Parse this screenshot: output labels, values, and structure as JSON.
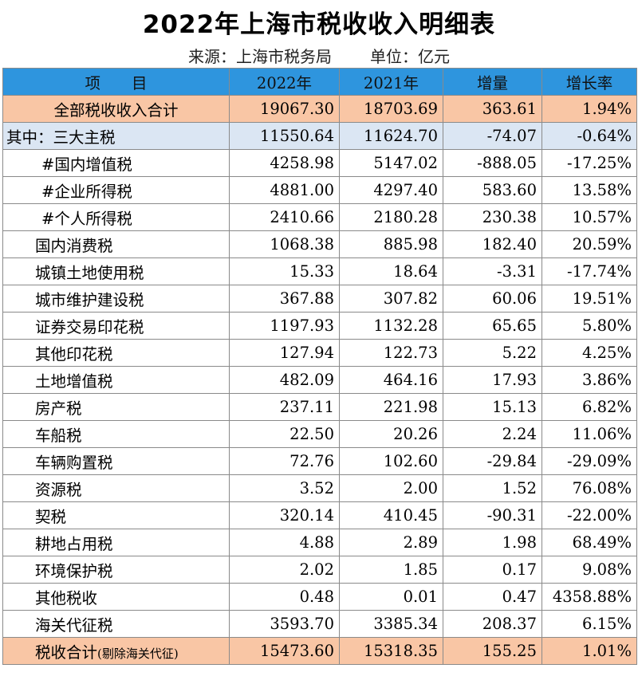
{
  "title": "2022年上海市税收收入明细表",
  "source": "来源：上海市税务局",
  "unit": "单位：亿元",
  "headers": [
    "项　　目",
    "2022年",
    "2021年",
    "增量",
    "增长率"
  ],
  "rows": [
    {
      "name": "全部税收收入合计",
      "y2022": "19067.30",
      "y2021": "18703.69",
      "delta": "363.61",
      "rate": "1.94%"
    },
    {
      "name": "其中：三大主税",
      "y2022": "11550.64",
      "y2021": "11624.70",
      "delta": "-74.07",
      "rate": "-0.64%"
    },
    {
      "name": "#国内增值税",
      "y2022": "4258.98",
      "y2021": "5147.02",
      "delta": "-888.05",
      "rate": "-17.25%"
    },
    {
      "name": "#企业所得税",
      "y2022": "4881.00",
      "y2021": "4297.40",
      "delta": "583.60",
      "rate": "13.58%"
    },
    {
      "name": "#个人所得税",
      "y2022": "2410.66",
      "y2021": "2180.28",
      "delta": "230.38",
      "rate": "10.57%"
    },
    {
      "name": "国内消费税",
      "y2022": "1068.38",
      "y2021": "885.98",
      "delta": "182.40",
      "rate": "20.59%"
    },
    {
      "name": "城镇土地使用税",
      "y2022": "15.33",
      "y2021": "18.64",
      "delta": "-3.31",
      "rate": "-17.74%"
    },
    {
      "name": "城市维护建设税",
      "y2022": "367.88",
      "y2021": "307.82",
      "delta": "60.06",
      "rate": "19.51%"
    },
    {
      "name": "证券交易印花税",
      "y2022": "1197.93",
      "y2021": "1132.28",
      "delta": "65.65",
      "rate": "5.80%"
    },
    {
      "name": "其他印花税",
      "y2022": "127.94",
      "y2021": "122.73",
      "delta": "5.22",
      "rate": "4.25%"
    },
    {
      "name": "土地增值税",
      "y2022": "482.09",
      "y2021": "464.16",
      "delta": "17.93",
      "rate": "3.86%"
    },
    {
      "name": "房产税",
      "y2022": "237.11",
      "y2021": "221.98",
      "delta": "15.13",
      "rate": "6.82%"
    },
    {
      "name": "车船税",
      "y2022": "22.50",
      "y2021": "20.26",
      "delta": "2.24",
      "rate": "11.06%"
    },
    {
      "name": "车辆购置税",
      "y2022": "72.76",
      "y2021": "102.60",
      "delta": "-29.84",
      "rate": "-29.09%"
    },
    {
      "name": "资源税",
      "y2022": "3.52",
      "y2021": "2.00",
      "delta": "1.52",
      "rate": "76.08%"
    },
    {
      "name": "契税",
      "y2022": "320.14",
      "y2021": "410.45",
      "delta": "-90.31",
      "rate": "-22.00%"
    },
    {
      "name": "耕地占用税",
      "y2022": "4.88",
      "y2021": "2.89",
      "delta": "1.98",
      "rate": "68.49%"
    },
    {
      "name": "环境保护税",
      "y2022": "2.02",
      "y2021": "1.85",
      "delta": "0.17",
      "rate": "9.08%"
    },
    {
      "name": "其他税收",
      "y2022": "0.48",
      "y2021": "0.01",
      "delta": "0.47",
      "rate": "4358.88%"
    },
    {
      "name": "海关代征税",
      "y2022": "3593.70",
      "y2021": "3385.34",
      "delta": "208.37",
      "rate": "6.15%"
    },
    {
      "name": "税收合计",
      "name_note": "(剔除海关代征)",
      "y2022": "15473.60",
      "y2021": "15318.35",
      "delta": "155.25",
      "rate": "1.01%"
    }
  ],
  "colors": {
    "header_bg": "#2e95de",
    "total_bg": "#f9c6a5",
    "main_tax_bg": "#dbe6f3"
  }
}
